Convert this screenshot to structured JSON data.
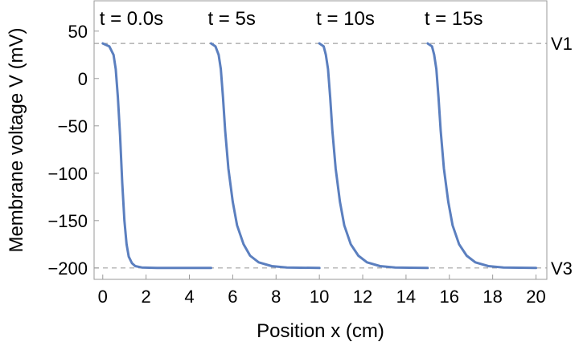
{
  "chart_data": {
    "type": "line",
    "xlabel": "Position x (cm)",
    "ylabel": "Membrane voltage V (mV)",
    "xlim": [
      -0.4,
      20.5
    ],
    "ylim": [
      -212,
      82
    ],
    "x_ticks": [
      0,
      2,
      4,
      6,
      8,
      10,
      12,
      14,
      16,
      18,
      20
    ],
    "y_ticks": [
      50,
      0,
      -50,
      -100,
      -150,
      -200
    ],
    "y_tick_labels": [
      "50",
      "0",
      "−50",
      "−100",
      "−150",
      "−200"
    ],
    "reference_lines": [
      {
        "label": "V1",
        "y": 37
      },
      {
        "label": "V3",
        "y": -200
      }
    ],
    "line_color": "#5b7fbf",
    "ref_line_color": "#a0a0a0",
    "series": [
      {
        "label": "t = 0.0s",
        "x": [
          0,
          0.3,
          0.5,
          0.6,
          0.7,
          0.8,
          0.9,
          1.0,
          1.1,
          1.2,
          1.35,
          1.5,
          1.8,
          2.5,
          5
        ],
        "y": [
          37,
          34,
          25,
          10,
          -20,
          -60,
          -110,
          -150,
          -175,
          -188,
          -195,
          -198,
          -199.5,
          -200,
          -200
        ]
      },
      {
        "label": "t = 5s",
        "x": [
          5,
          5.2,
          5.35,
          5.45,
          5.55,
          5.65,
          5.8,
          6.0,
          6.2,
          6.5,
          6.8,
          7.2,
          7.8,
          8.5,
          10
        ],
        "y": [
          37,
          34,
          25,
          10,
          -20,
          -55,
          -95,
          -130,
          -155,
          -175,
          -187,
          -194,
          -198,
          -199.5,
          -200
        ]
      },
      {
        "label": "t = 10s",
        "x": [
          10,
          10.2,
          10.3,
          10.4,
          10.5,
          10.6,
          10.75,
          10.95,
          11.15,
          11.45,
          11.8,
          12.2,
          12.8,
          13.5,
          15
        ],
        "y": [
          37,
          34,
          25,
          10,
          -20,
          -55,
          -95,
          -130,
          -155,
          -175,
          -187,
          -194,
          -198,
          -199.5,
          -200
        ]
      },
      {
        "label": "t = 15s",
        "x": [
          15,
          15.2,
          15.3,
          15.4,
          15.5,
          15.6,
          15.75,
          15.95,
          16.15,
          16.45,
          16.8,
          17.2,
          17.8,
          18.5,
          20
        ],
        "y": [
          37,
          34,
          25,
          10,
          -20,
          -55,
          -95,
          -130,
          -155,
          -175,
          -187,
          -194,
          -198,
          -199.5,
          -200
        ]
      }
    ]
  }
}
